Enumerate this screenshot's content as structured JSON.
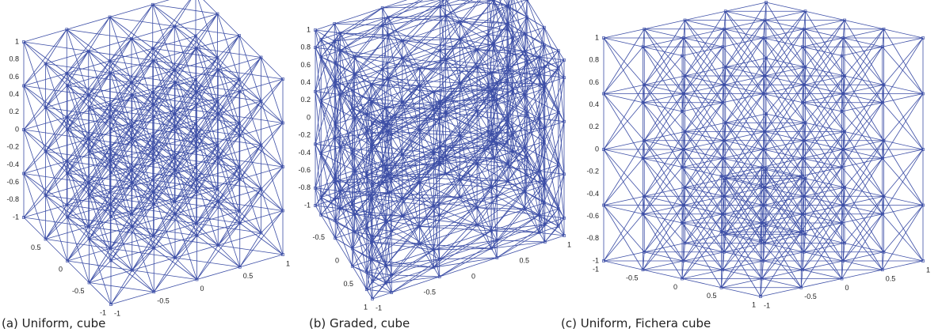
{
  "panels": [
    {
      "caption": "(a) Uniform, cube",
      "z_ticks": [
        "1",
        "0.8",
        "0.6",
        "0.4",
        "0.2",
        "0",
        "-0.2",
        "-0.4",
        "-0.6",
        "-0.8",
        "-1"
      ],
      "x_ticks": [
        "0.5",
        "0",
        "-0.5",
        "-1"
      ],
      "y_ticks": [
        "-1",
        "-0.5",
        "0",
        "0.5",
        "1"
      ]
    },
    {
      "caption": "(b) Graded, cube",
      "z_ticks": [
        "1",
        "0.8",
        "0.6",
        "0.4",
        "0.2",
        "0",
        "-0.2",
        "-0.4",
        "-0.6",
        "-0.8",
        "-1"
      ],
      "x_ticks": [
        "-0.5",
        "0",
        "0.5",
        "1"
      ],
      "y_ticks": [
        "-1",
        "-0.5",
        "0",
        "0.5",
        "1"
      ]
    },
    {
      "caption": "(c) Uniform, Fichera cube",
      "z_ticks": [
        "1",
        "0.8",
        "0.6",
        "0.4",
        "0.2",
        "0",
        "-0.2",
        "-0.4",
        "-0.6",
        "-0.8",
        "-1"
      ],
      "x_ticks": [
        "-1",
        "-0.5",
        "0",
        "0.5",
        "1"
      ],
      "y_ticks": [
        "-1",
        "-0.5",
        "0",
        "0.5",
        "1"
      ]
    }
  ]
}
